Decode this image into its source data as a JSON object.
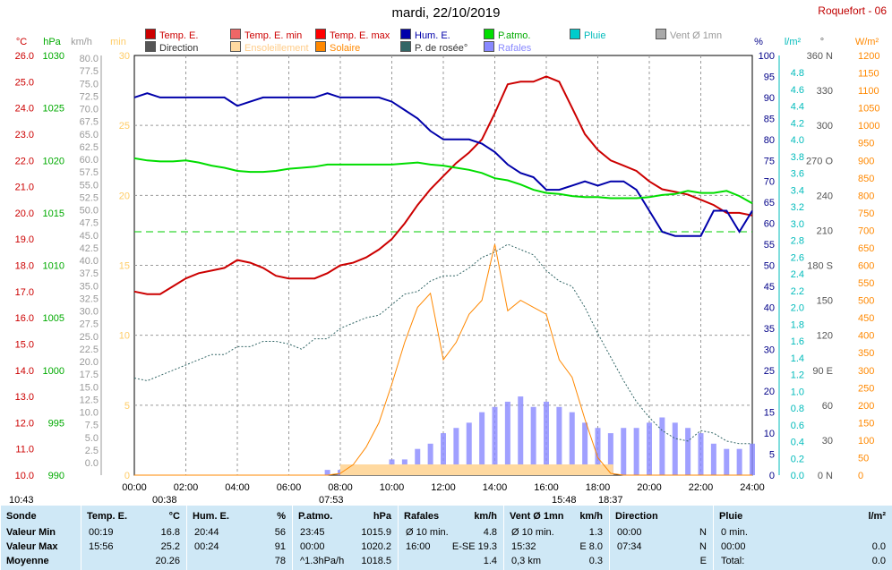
{
  "title": "mardi, 22/10/2019",
  "station": "Roquefort - 06",
  "legend": [
    {
      "label": "Temp. E.",
      "color": "#cc0000"
    },
    {
      "label": "Temp. E. min",
      "color": "#ee6666"
    },
    {
      "label": "Temp. E. max",
      "color": "#ff0000"
    },
    {
      "label": "Hum. E.",
      "color": "#0000aa"
    },
    {
      "label": "P.atmo.",
      "color": "#00dd00"
    },
    {
      "label": "Pluie",
      "color": "#00cccc"
    },
    {
      "label": "Vent Ø 1mn",
      "color": "#aaaaaa"
    },
    {
      "label": "Direction",
      "color": "#555555"
    },
    {
      "label": "Ensoleillement",
      "color": "#ffd9a0"
    },
    {
      "label": "Solaire",
      "color": "#ff8800"
    },
    {
      "label": "P. de rosée°",
      "color": "#336666"
    },
    {
      "label": "Rafales",
      "color": "#8888ff"
    }
  ],
  "axes": {
    "temp": {
      "unit": "°C",
      "ticks": [
        "26.0",
        "25.0",
        "24.0",
        "23.0",
        "22.0",
        "21.0",
        "20.0",
        "19.0",
        "18.0",
        "17.0",
        "16.0",
        "15.0",
        "14.0",
        "13.0",
        "12.0",
        "11.0",
        "10.0"
      ],
      "color": "#cc0000"
    },
    "press": {
      "unit": "hPa",
      "ticks": [
        "1030",
        "1025",
        "1020",
        "1015",
        "1010",
        "1005",
        "1000",
        "995",
        "990"
      ],
      "color": "#00aa00"
    },
    "wind": {
      "unit": "km/h",
      "ticks": [
        "80.0",
        "77.5",
        "75.0",
        "72.5",
        "70.0",
        "67.5",
        "65.0",
        "62.5",
        "60.0",
        "57.5",
        "55.0",
        "52.5",
        "50.0",
        "47.5",
        "45.0",
        "42.5",
        "40.0",
        "37.5",
        "35.0",
        "32.5",
        "30.0",
        "27.5",
        "25.0",
        "22.5",
        "20.0",
        "17.5",
        "15.0",
        "12.5",
        "10.0",
        "7.5",
        "5.0",
        "2.5",
        "0.0"
      ],
      "color": "#999999"
    },
    "sun": {
      "unit": "min",
      "ticks": [
        "30",
        "25",
        "20",
        "15",
        "10",
        "5",
        "0"
      ],
      "color": "#ffcc66"
    },
    "hum": {
      "unit": "%",
      "ticks": [
        "100",
        "95",
        "90",
        "85",
        "80",
        "75",
        "70",
        "65",
        "60",
        "55",
        "50",
        "45",
        "40",
        "35",
        "30",
        "25",
        "20",
        "15",
        "10",
        "5",
        "0"
      ],
      "color": "#000088"
    },
    "rain": {
      "unit": "l/m²",
      "ticks": [
        "4.8",
        "4.6",
        "4.4",
        "4.2",
        "4.0",
        "3.8",
        "3.6",
        "3.4",
        "3.2",
        "3.0",
        "2.8",
        "2.6",
        "2.4",
        "2.2",
        "2.0",
        "1.8",
        "1.6",
        "1.4",
        "1.2",
        "1.0",
        "0.8",
        "0.6",
        "0.4",
        "0.2",
        "0.0"
      ],
      "color": "#00bbbb"
    },
    "dir": {
      "unit": "°",
      "ticks": [
        "360 N",
        "330",
        "300",
        "270 O",
        "240",
        "210",
        "180 S",
        "150",
        "120",
        "90 E",
        "60",
        "30",
        "0 N"
      ],
      "color": "#555555"
    },
    "solar": {
      "unit": "W/m²",
      "ticks": [
        "1200",
        "1150",
        "1100",
        "1050",
        "1000",
        "950",
        "900",
        "850",
        "800",
        "750",
        "700",
        "650",
        "600",
        "550",
        "500",
        "450",
        "400",
        "350",
        "300",
        "250",
        "200",
        "150",
        "100",
        "50",
        "0"
      ],
      "color": "#ff8800"
    },
    "x": {
      "ticks": [
        "00:00",
        "02:00",
        "04:00",
        "06:00",
        "08:00",
        "10:00",
        "12:00",
        "14:00",
        "16:00",
        "18:00",
        "20:00",
        "22:00",
        "24:00"
      ]
    }
  },
  "markers": [
    "10:43",
    "00:38",
    "07:53",
    "15:48",
    "18:37"
  ],
  "chart_data": {
    "type": "line",
    "x_hours": [
      0,
      0.5,
      1,
      1.5,
      2,
      2.5,
      3,
      3.5,
      4,
      4.5,
      5,
      5.5,
      6,
      6.5,
      7,
      7.5,
      8,
      8.5,
      9,
      9.5,
      10,
      10.5,
      11,
      11.5,
      12,
      12.5,
      13,
      13.5,
      14,
      14.5,
      15,
      15.5,
      16,
      16.5,
      17,
      17.5,
      18,
      18.5,
      19,
      19.5,
      20,
      20.5,
      21,
      21.5,
      22,
      22.5,
      23,
      23.5,
      24
    ],
    "series": [
      {
        "name": "Temp. E.",
        "axis": "temp",
        "values": [
          17.0,
          16.9,
          16.9,
          17.2,
          17.5,
          17.7,
          17.8,
          17.9,
          18.2,
          18.1,
          17.9,
          17.6,
          17.5,
          17.5,
          17.5,
          17.7,
          18.0,
          18.1,
          18.3,
          18.6,
          19.0,
          19.6,
          20.3,
          20.9,
          21.4,
          21.9,
          22.3,
          22.8,
          23.8,
          24.9,
          25.0,
          25.0,
          25.2,
          25.0,
          24.0,
          23.0,
          22.4,
          22.0,
          21.8,
          21.6,
          21.2,
          20.9,
          20.8,
          20.7,
          20.5,
          20.3,
          20.0,
          20.0,
          19.9
        ]
      },
      {
        "name": "Hum. E.",
        "axis": "hum",
        "values": [
          90,
          91,
          90,
          90,
          90,
          90,
          90,
          90,
          88,
          89,
          90,
          90,
          90,
          90,
          90,
          91,
          90,
          90,
          90,
          90,
          89,
          87,
          85,
          82,
          80,
          80,
          80,
          79,
          77,
          74,
          72,
          71,
          68,
          68,
          69,
          70,
          69,
          70,
          70,
          68,
          63,
          58,
          57,
          57,
          57,
          63,
          63,
          58,
          63
        ]
      },
      {
        "name": "P.atmo.",
        "axis": "press",
        "values": [
          1020.2,
          1020.0,
          1019.9,
          1019.9,
          1020.0,
          1019.8,
          1019.5,
          1019.3,
          1019.0,
          1018.9,
          1018.9,
          1019.0,
          1019.2,
          1019.3,
          1019.4,
          1019.6,
          1019.6,
          1019.6,
          1019.6,
          1019.6,
          1019.6,
          1019.7,
          1019.8,
          1019.6,
          1019.5,
          1019.3,
          1019.1,
          1018.8,
          1018.3,
          1018.1,
          1017.7,
          1017.2,
          1016.9,
          1016.8,
          1016.6,
          1016.5,
          1016.5,
          1016.4,
          1016.4,
          1016.4,
          1016.5,
          1016.7,
          1016.8,
          1017.1,
          1016.9,
          1016.9,
          1017.1,
          1016.6,
          1015.9
        ]
      },
      {
        "name": "P. de rosée°",
        "axis": "temp",
        "values": [
          13.7,
          13.6,
          13.8,
          14.0,
          14.2,
          14.4,
          14.6,
          14.6,
          14.9,
          14.9,
          15.1,
          15.1,
          15.0,
          14.8,
          15.2,
          15.2,
          15.6,
          15.8,
          16.0,
          16.1,
          16.5,
          16.9,
          17.0,
          17.4,
          17.6,
          17.6,
          17.9,
          18.3,
          18.5,
          18.8,
          18.6,
          18.4,
          17.8,
          17.4,
          17.2,
          16.4,
          15.4,
          14.5,
          13.6,
          12.8,
          12.2,
          11.7,
          11.4,
          11.3,
          11.7,
          11.6,
          11.3,
          11.2,
          11.2
        ]
      },
      {
        "name": "Solaire",
        "axis": "solar",
        "values": [
          0,
          0,
          0,
          0,
          0,
          0,
          0,
          0,
          0,
          0,
          0,
          0,
          0,
          0,
          0,
          0,
          5,
          30,
          80,
          150,
          260,
          380,
          480,
          520,
          330,
          380,
          460,
          500,
          660,
          470,
          500,
          480,
          460,
          330,
          280,
          160,
          50,
          5,
          0,
          0,
          0,
          0,
          0,
          0,
          0,
          0,
          0,
          0,
          0
        ]
      },
      {
        "name": "Rafales",
        "axis": "wind",
        "values": [
          0,
          0,
          0,
          0,
          0,
          0,
          0,
          0,
          0,
          0,
          0,
          0,
          0,
          0,
          0,
          1,
          1,
          2,
          2,
          2,
          3,
          3,
          5,
          6,
          8,
          9,
          10,
          12,
          13,
          14,
          15,
          13,
          14,
          13,
          12,
          10,
          9,
          8,
          9,
          9,
          10,
          11,
          10,
          9,
          8,
          6,
          5,
          5,
          6
        ]
      }
    ]
  },
  "footer": {
    "cols": [
      {
        "head": "Sonde",
        "rows": [
          "Valeur Min",
          "Valeur Max",
          "Moyenne"
        ]
      },
      {
        "head": "Temp. E.",
        "unit": "°C",
        "rows": [
          [
            "00:19",
            "16.8"
          ],
          [
            "15:56",
            "25.2"
          ],
          [
            "",
            "20.26"
          ]
        ]
      },
      {
        "head": "Hum. E.",
        "unit": "%",
        "rows": [
          [
            "20:44",
            "56"
          ],
          [
            "00:24",
            "91"
          ],
          [
            "",
            "78"
          ]
        ]
      },
      {
        "head": "P.atmo.",
        "unit": "hPa",
        "rows": [
          [
            "23:45",
            "1015.9"
          ],
          [
            "00:00",
            "1020.2"
          ],
          [
            "^1.3hPa/h",
            "1018.5"
          ]
        ]
      },
      {
        "head": "Rafales",
        "unit": "km/h",
        "rows": [
          [
            "Ø 10 min.",
            "4.8"
          ],
          [
            "16:00",
            "E-SE 19.3"
          ],
          [
            "",
            "1.4"
          ]
        ]
      },
      {
        "head": "Vent Ø 1mn",
        "unit": "km/h",
        "rows": [
          [
            "Ø 10 min.",
            "1.3"
          ],
          [
            "15:32",
            "E 8.0"
          ],
          [
            "0,3 km",
            "0.3"
          ]
        ]
      },
      {
        "head": "Direction",
        "unit": "",
        "rows": [
          [
            "00:00",
            "N"
          ],
          [
            "07:34",
            "N"
          ],
          [
            "",
            "E"
          ]
        ]
      },
      {
        "head": "Pluie",
        "unit": "l/m²",
        "rows": [
          [
            "0 min.",
            ""
          ],
          [
            "00:00",
            "0.0"
          ],
          [
            "Total:",
            "0.0"
          ]
        ]
      }
    ]
  }
}
